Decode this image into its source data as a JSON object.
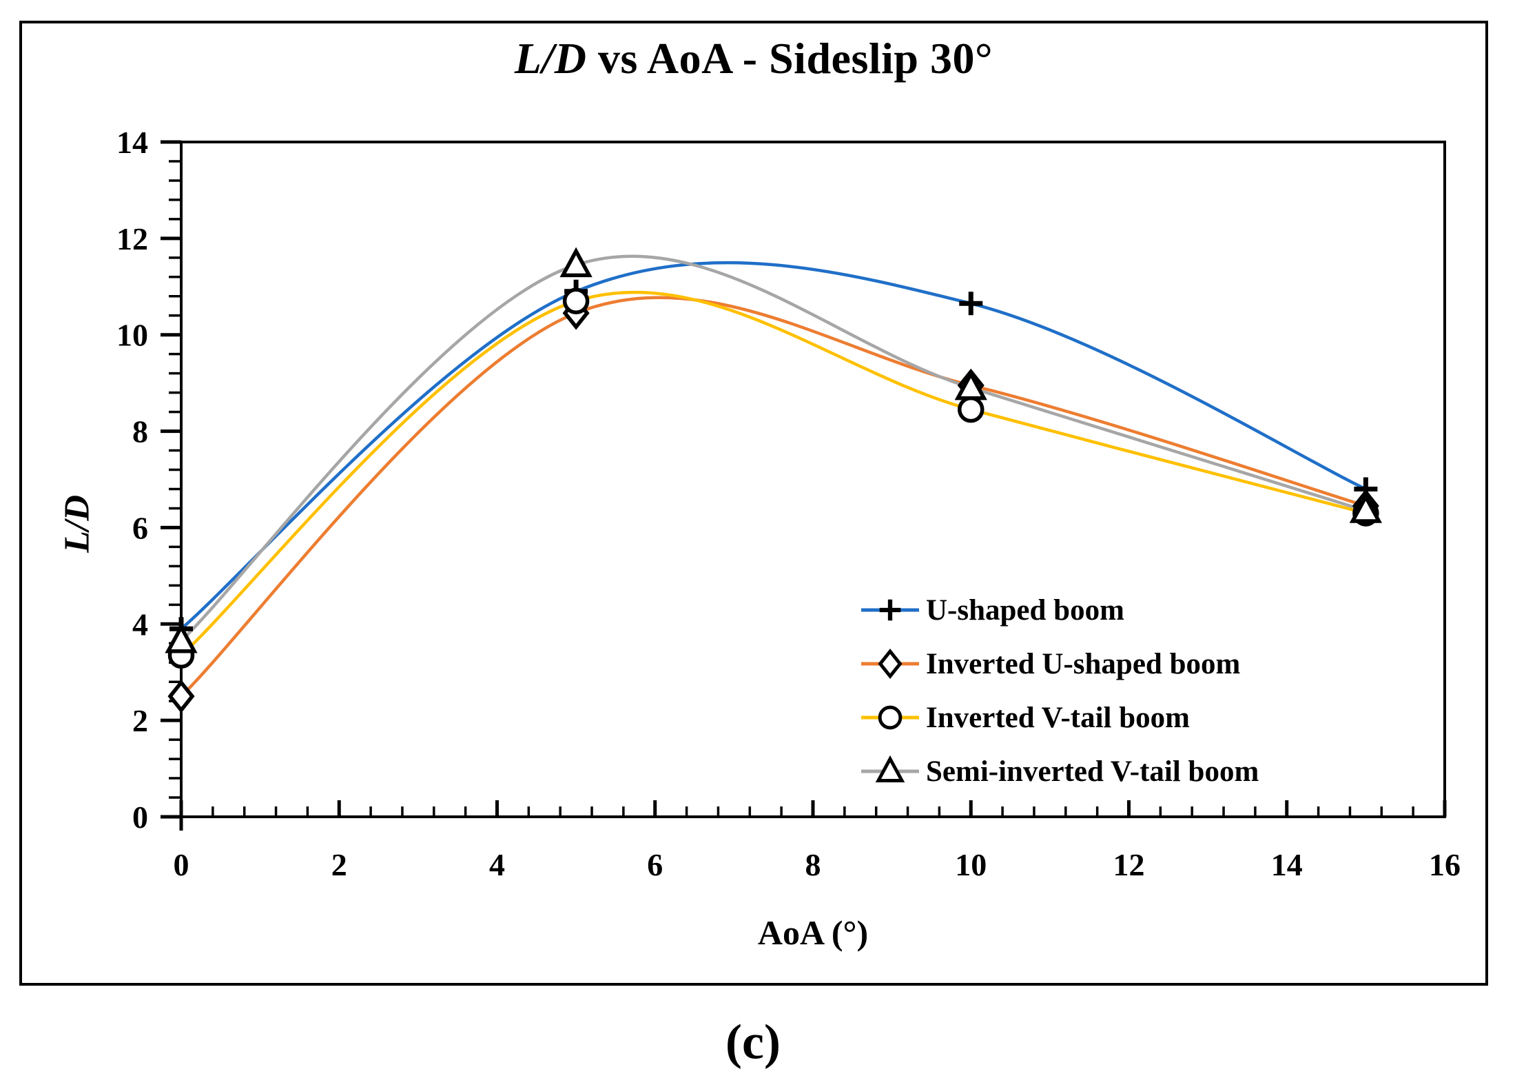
{
  "figure": {
    "title_ld": "L/D",
    "title_rest": " vs AoA - Sideslip 30°",
    "caption": "(c)"
  },
  "chart_data": {
    "type": "line",
    "title": "L/D vs AoA - Sideslip 30°",
    "xlabel": "AoA (°)",
    "ylabel": "L/D",
    "x": [
      0,
      5,
      10,
      15
    ],
    "xlim": [
      0,
      16
    ],
    "ylim": [
      0,
      14
    ],
    "x_major_ticks": [
      0,
      2,
      4,
      6,
      8,
      10,
      12,
      14,
      16
    ],
    "y_major_ticks": [
      0,
      2,
      4,
      6,
      8,
      10,
      12,
      14
    ],
    "minor_tick_step": 0.4,
    "grid": false,
    "smooth": true,
    "legend_position": "inside-right",
    "marker_color": "#000000",
    "series": [
      {
        "name": "U-shaped boom",
        "color": "#1F6FC8",
        "marker": "plus",
        "values": [
          3.9,
          10.9,
          10.65,
          6.8
        ]
      },
      {
        "name": "Inverted U-shaped boom",
        "color": "#ED7D31",
        "marker": "diamond",
        "values": [
          2.5,
          10.45,
          8.95,
          6.45
        ]
      },
      {
        "name": "Inverted V-tail boom",
        "color": "#FFC000",
        "marker": "circle",
        "values": [
          3.35,
          10.7,
          8.45,
          6.3
        ]
      },
      {
        "name": "Semi-inverted V-tail boom",
        "color": "#A6A6A6",
        "marker": "triangle",
        "values": [
          3.65,
          11.45,
          8.9,
          6.35
        ]
      }
    ]
  }
}
